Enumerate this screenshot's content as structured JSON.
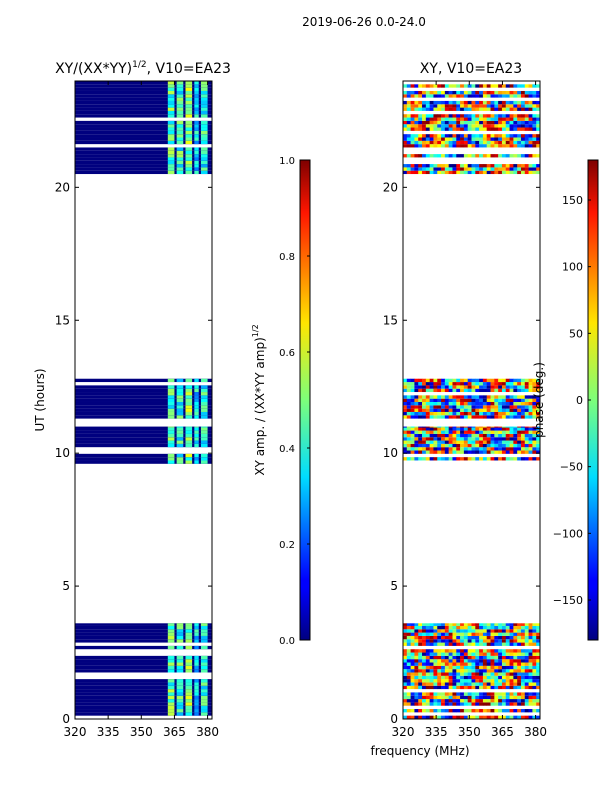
{
  "figure_title": "2019-06-26 0.0-24.0",
  "chart_data": [
    {
      "type": "heatmap",
      "title": "XY/(XX*YY)",
      "title_superscript": "1/2",
      "title_suffix": ", V10=EA23",
      "xlabel": "",
      "ylabel": "UT (hours)",
      "xlim": [
        320,
        382
      ],
      "ylim": [
        0,
        24
      ],
      "x_ticks": [
        320,
        335,
        350,
        365,
        380
      ],
      "y_ticks": [
        0,
        5,
        10,
        15,
        20
      ],
      "observed_ut_blocks": [
        [
          0.0,
          3.6
        ],
        [
          9.6,
          11.0
        ],
        [
          11.3,
          12.8
        ],
        [
          20.5,
          24.0
        ]
      ],
      "colorbar": {
        "label": "XY amp. / (XX*YY amp)",
        "label_superscript": "1/2",
        "min": 0.0,
        "max": 1.0,
        "ticks": [
          "0.0",
          "0.2",
          "0.4",
          "0.6",
          "0.8",
          "1.0"
        ],
        "colormap": "jet"
      }
    },
    {
      "type": "heatmap",
      "title": "XY, V10=EA23",
      "xlabel": "frequency (MHz)",
      "ylabel": "",
      "xlim": [
        320,
        382
      ],
      "ylim": [
        0,
        24
      ],
      "x_ticks": [
        320,
        335,
        350,
        365,
        380
      ],
      "y_ticks": [
        0,
        5,
        10,
        15,
        20
      ],
      "observed_ut_blocks": [
        [
          0.0,
          3.6
        ],
        [
          9.6,
          11.0
        ],
        [
          11.3,
          12.8
        ],
        [
          20.5,
          24.0
        ]
      ],
      "colorbar": {
        "label": "phase (deg.)",
        "min": -180,
        "max": 180,
        "ticks": [
          "150",
          "100",
          "50",
          "0",
          "−50",
          "−100",
          "−150"
        ],
        "colormap": "jet"
      }
    }
  ]
}
